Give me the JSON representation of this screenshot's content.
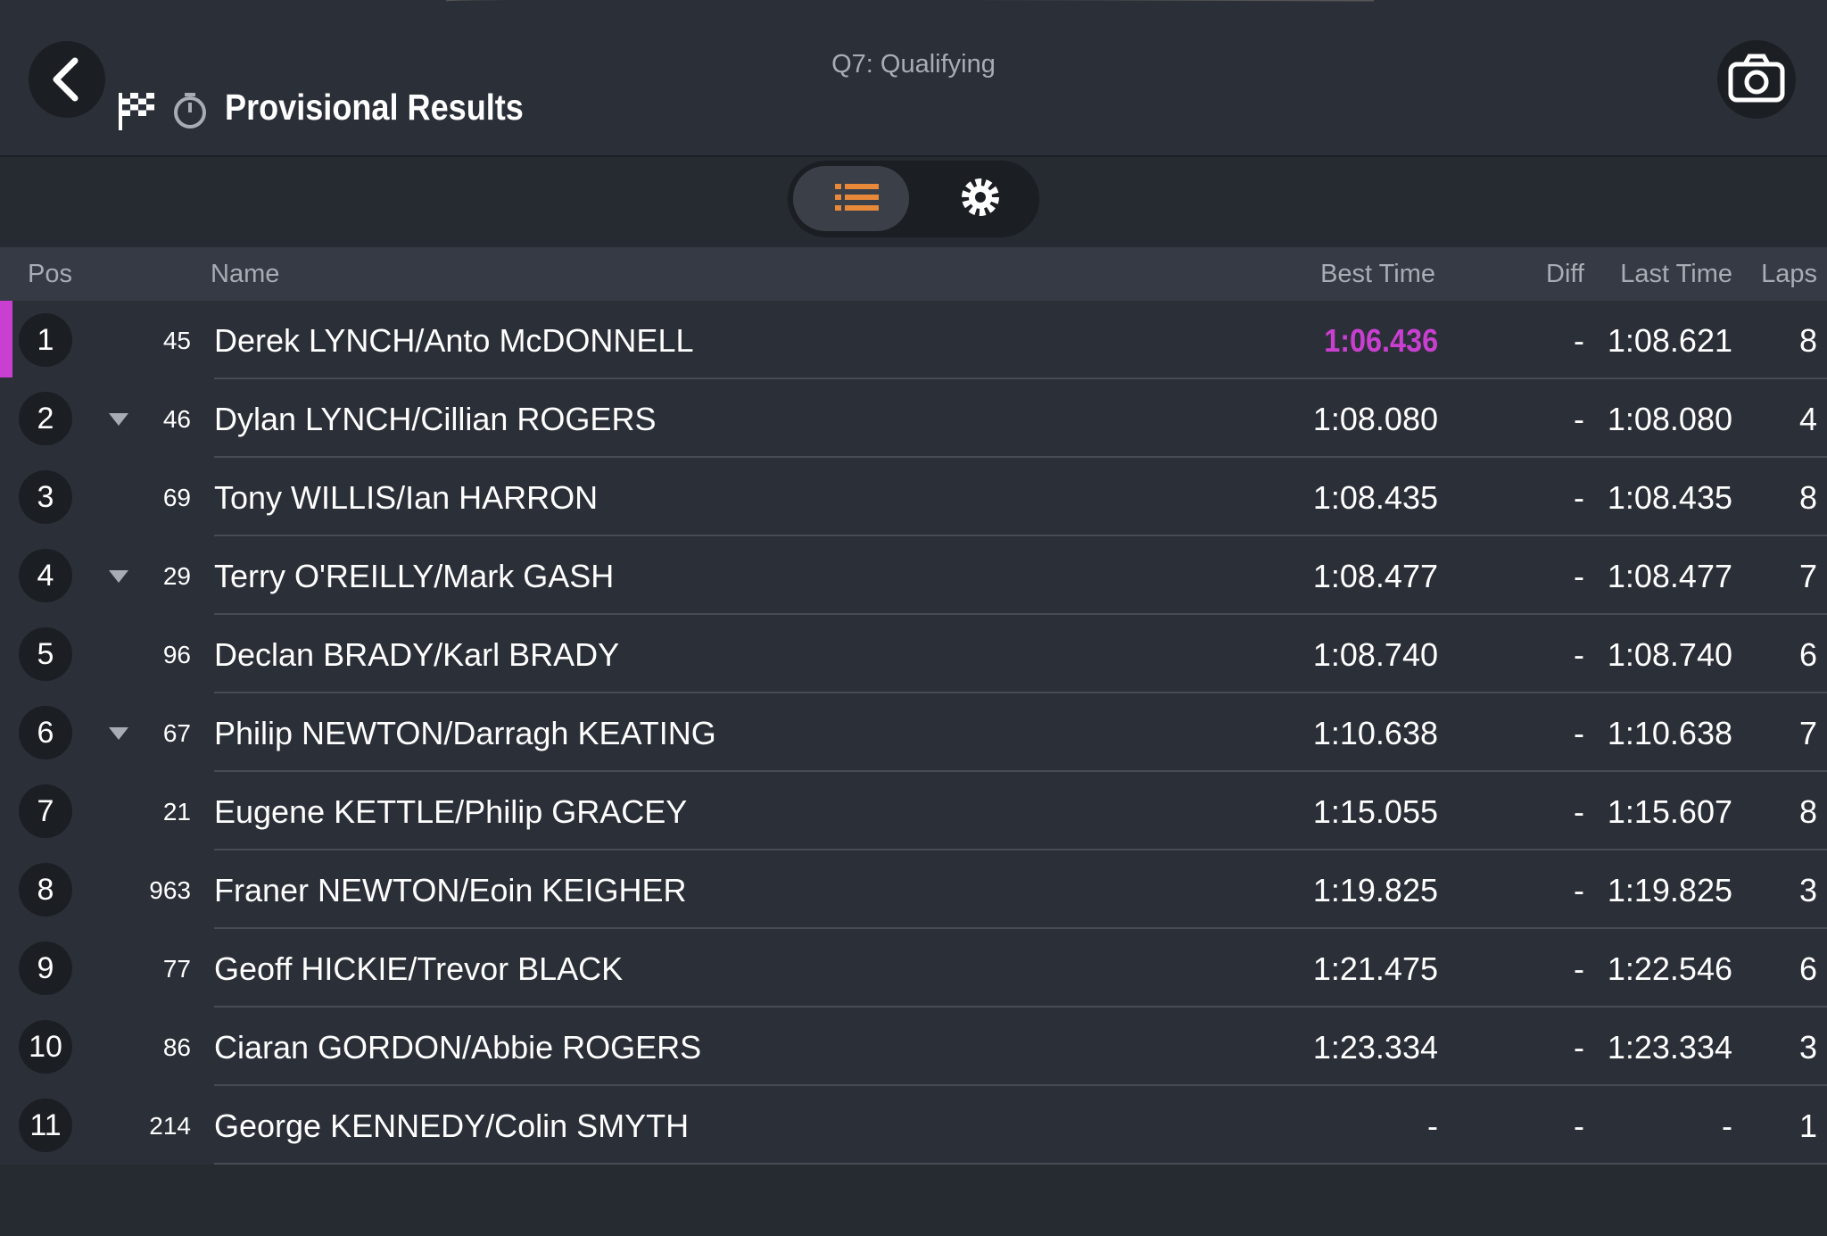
{
  "header": {
    "session": "Q7: Qualifying",
    "title": "Provisional Results"
  },
  "table": {
    "columns": [
      "Pos",
      "Name",
      "Best Time",
      "Diff",
      "Last Time",
      "Laps"
    ],
    "rows": [
      {
        "pos": 1,
        "number": 45,
        "name": "Derek LYNCH/Anto McDONNELL",
        "best_time": "1:06.436",
        "diff": "-",
        "last_time": "1:08.621",
        "laps": 8,
        "highlight_color": "#c93fd0"
      },
      {
        "pos": 2,
        "number": 46,
        "name": "Dylan LYNCH/Cillian ROGERS",
        "best_time": "1:08.080",
        "diff": "-",
        "last_time": "1:08.080",
        "laps": 4,
        "change": "down"
      },
      {
        "pos": 3,
        "number": 69,
        "name": "Tony WILLIS/Ian HARRON",
        "best_time": "1:08.435",
        "diff": "-",
        "last_time": "1:08.435",
        "laps": 8
      },
      {
        "pos": 4,
        "number": 29,
        "name": "Terry O'REILLY/Mark GASH",
        "best_time": "1:08.477",
        "diff": "-",
        "last_time": "1:08.477",
        "laps": 7,
        "change": "down"
      },
      {
        "pos": 5,
        "number": 96,
        "name": "Declan BRADY/Karl BRADY",
        "best_time": "1:08.740",
        "diff": "-",
        "last_time": "1:08.740",
        "laps": 6
      },
      {
        "pos": 6,
        "number": 67,
        "name": "Philip NEWTON/Darragh KEATING",
        "best_time": "1:10.638",
        "diff": "-",
        "last_time": "1:10.638",
        "laps": 7,
        "change": "down"
      },
      {
        "pos": 7,
        "number": 21,
        "name": "Eugene KETTLE/Philip GRACEY",
        "best_time": "1:15.055",
        "diff": "-",
        "last_time": "1:15.607",
        "laps": 8
      },
      {
        "pos": 8,
        "number": 963,
        "name": "Franer NEWTON/Eoin KEIGHER",
        "best_time": "1:19.825",
        "diff": "-",
        "last_time": "1:19.825",
        "laps": 3
      },
      {
        "pos": 9,
        "number": 77,
        "name": "Geoff HICKIE/Trevor BLACK",
        "best_time": "1:21.475",
        "diff": "-",
        "last_time": "1:22.546",
        "laps": 6
      },
      {
        "pos": 10,
        "number": 86,
        "name": "Ciaran GORDON/Abbie ROGERS",
        "best_time": "1:23.334",
        "diff": "-",
        "last_time": "1:23.334",
        "laps": 3
      },
      {
        "pos": 11,
        "number": 214,
        "name": "George KENNEDY/Colin SMYTH",
        "best_time": "-",
        "diff": "-",
        "last_time": "-",
        "laps": 1
      }
    ]
  }
}
